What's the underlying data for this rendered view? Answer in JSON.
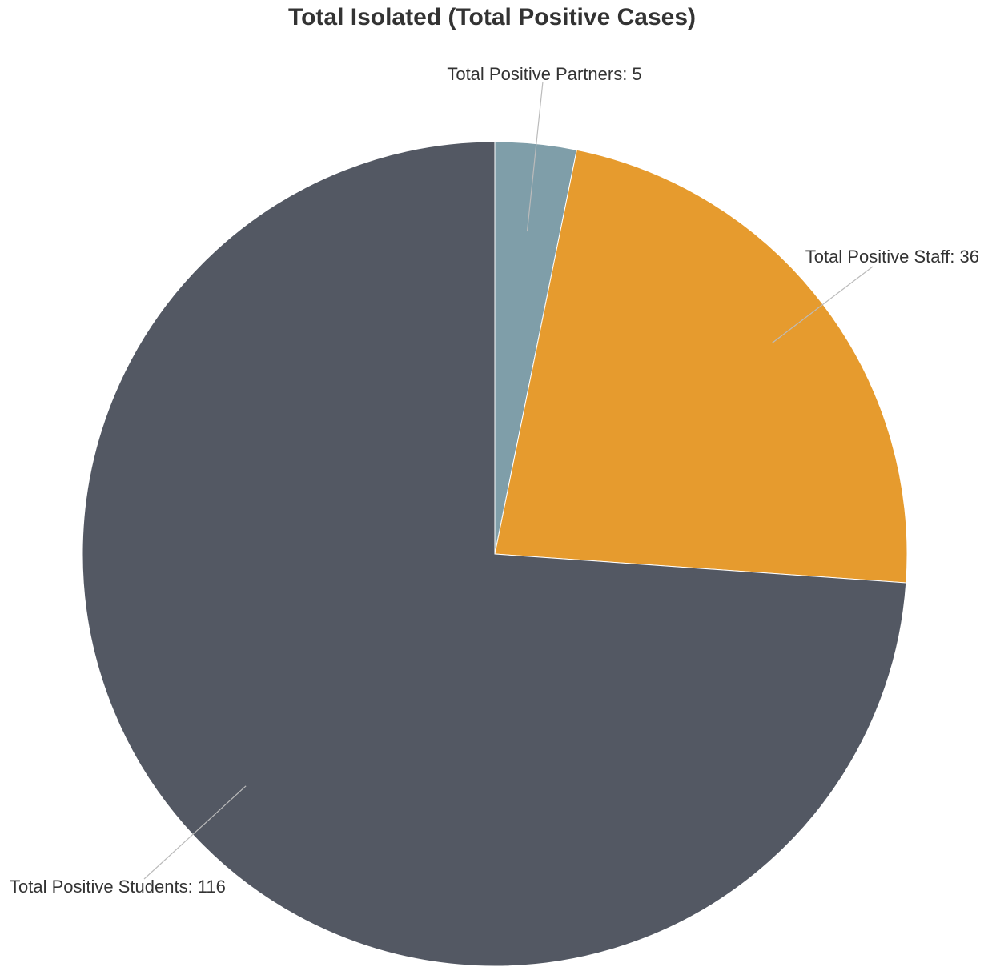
{
  "chart_data": {
    "type": "pie",
    "title": "Total Isolated (Total Positive Cases)",
    "start_angle_deg": 0,
    "direction": "clockwise",
    "slices": [
      {
        "label": "Total Positive Partners",
        "value": 5,
        "color": "#7f9ea9",
        "display": "Total Positive Partners: 5"
      },
      {
        "label": "Total Positive Staff",
        "value": 36,
        "color": "#e69b2e",
        "display": "Total Positive Staff: 36"
      },
      {
        "label": "Total Positive Students",
        "value": 116,
        "color": "#535863",
        "display": "Total Positive Students: 116"
      }
    ]
  }
}
